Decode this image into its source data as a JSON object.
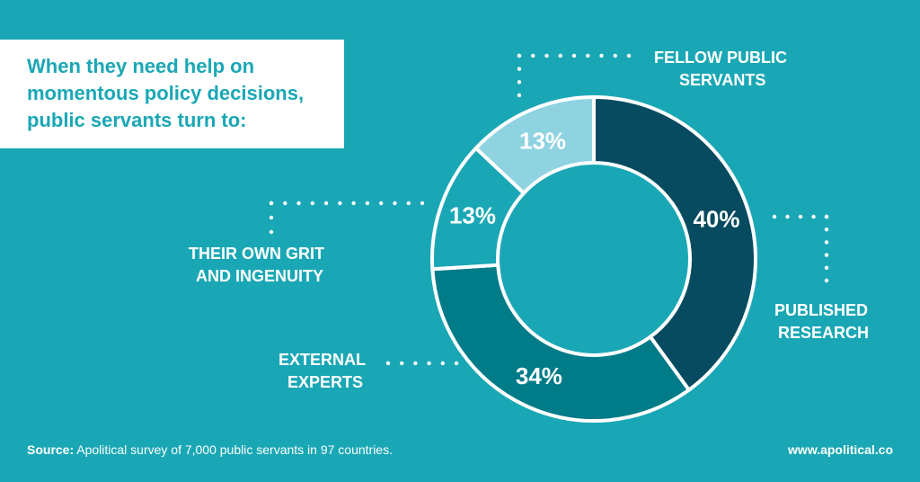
{
  "title": "When they need help on momentous policy decisions, public servants turn to:",
  "chart_data": {
    "type": "pie",
    "categories": [
      "PUBLISHED RESEARCH",
      "EXTERNAL EXPERTS",
      "THEIR OWN GRIT AND INGENUITY",
      "FELLOW PUBLIC SERVANTS"
    ],
    "values": [
      40,
      34,
      13,
      13
    ],
    "value_labels": [
      "40%",
      "34%",
      "13%",
      "13%"
    ],
    "colors": [
      "#064b5f",
      "#007b88",
      "#1aa7b5",
      "#8fd3e1"
    ],
    "donut": true,
    "legend": "none"
  },
  "labels": {
    "fellow_line1": "FELLOW PUBLIC",
    "fellow_line2": "SERVANTS",
    "research_line1": "PUBLISHED",
    "research_line2": "RESEARCH",
    "experts_line1": "EXTERNAL",
    "experts_line2": "EXPERTS",
    "grit_line1": "THEIR OWN GRIT",
    "grit_line2": "AND INGENUITY"
  },
  "footer": {
    "source_label": "Source:",
    "source_text": " Apolitical survey of 7,000 public servants in 97 countries.",
    "url": "www.apolitical.co"
  }
}
